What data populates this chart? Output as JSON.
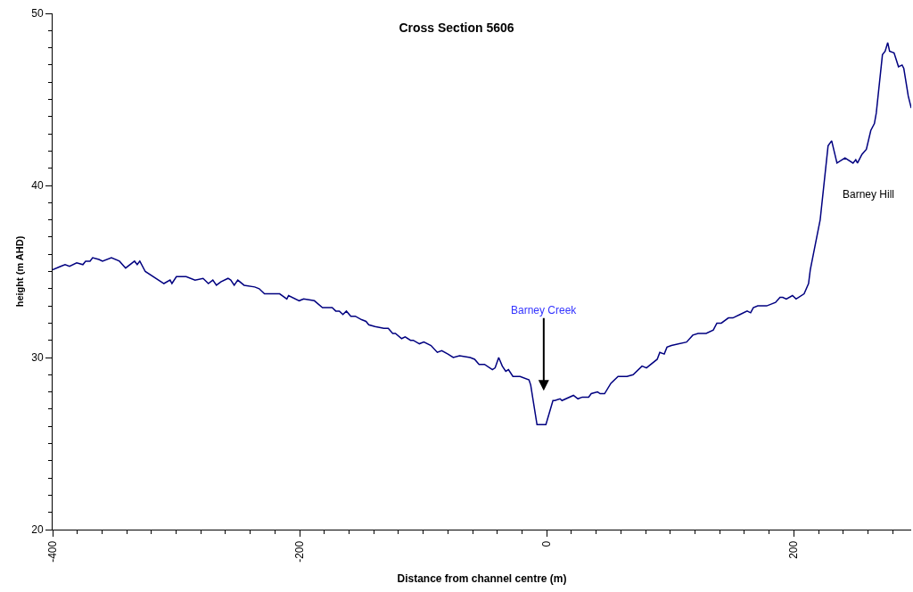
{
  "chart_data": {
    "type": "line",
    "title": "Cross Section 5606",
    "xlabel": "Distance from channel centre (m)",
    "ylabel": "height (m AHD)",
    "x": [
      -400,
      -393.5,
      -389.9,
      -386.3,
      -380.5,
      -375.5,
      -373.3,
      -369.7,
      -367.6,
      -362.5,
      -359.6,
      -352.4,
      -345.9,
      -340.9,
      -333.7,
      -331.5,
      -329.4,
      -325.0,
      -309.9,
      -304.9,
      -303.4,
      -299.8,
      -291.9,
      -284.7,
      -278.2,
      -273.9,
      -270.3,
      -267.4,
      -263.8,
      -258.0,
      -255.8,
      -253.0,
      -250.1,
      -245.0,
      -236.4,
      -232.8,
      -228.5,
      -216.2,
      -210.4,
      -209.0,
      -200.4,
      -196.8,
      -188.1,
      -181.6,
      -173.7,
      -170.8,
      -167.9,
      -165.0,
      -162.2,
      -158.6,
      -155.0,
      -149.9,
      -146.3,
      -144.1,
      -139.1,
      -131.9,
      -128.3,
      -124.7,
      -122.5,
      -117.5,
      -114.6,
      -110.3,
      -108.1,
      -103.1,
      -99.5,
      -93.7,
      -88.6,
      -85.0,
      -80.0,
      -75.7,
      -70.6,
      -62.0,
      -58.4,
      -54.8,
      -50.4,
      -44.0,
      -41.8,
      -38.9,
      -36.0,
      -33.2,
      -31.0,
      -27.4,
      -23.8,
      -21.6,
      -14.4,
      -13.0,
      -10.8,
      -7.9,
      -0.7,
      5.0,
      6.5,
      10.8,
      12.3,
      21.6,
      25.2,
      28.8,
      33.9,
      36.0,
      41.1,
      43.2,
      46.8,
      51.9,
      57.7,
      64.9,
      69.9,
      77.1,
      80.7,
      89.4,
      91.5,
      95.1,
      97.3,
      100.9,
      113.2,
      118.2,
      122.5,
      129.0,
      134.8,
      137.7,
      141.3,
      147.0,
      150.6,
      156.4,
      162.2,
      165.0,
      167.2,
      170.8,
      173.0,
      178.0,
      185.2,
      188.8,
      191.0,
      193.9,
      198.9,
      201.8,
      208.3,
      211.9,
      213.3,
      221.3,
      227.7,
      230.6,
      234.9,
      241.4,
      247.9,
      250.1,
      251.5,
      255.1,
      258.7,
      262.3,
      265.2,
      266.7,
      271.7,
      273.9,
      276.0,
      277.5,
      281.1,
      284.7,
      287.6,
      289.0,
      292.6,
      295
    ],
    "series": [
      {
        "color": "#000080",
        "values": [
          35.1,
          35.3,
          35.4,
          35.3,
          35.5,
          35.4,
          35.6,
          35.6,
          35.8,
          35.7,
          35.6,
          35.8,
          35.6,
          35.2,
          35.6,
          35.4,
          35.6,
          35.0,
          34.3,
          34.5,
          34.3,
          34.7,
          34.7,
          34.5,
          34.6,
          34.3,
          34.5,
          34.2,
          34.4,
          34.6,
          34.5,
          34.2,
          34.5,
          34.2,
          34.1,
          34.0,
          33.7,
          33.7,
          33.4,
          33.6,
          33.3,
          33.4,
          33.3,
          32.9,
          32.9,
          32.7,
          32.7,
          32.5,
          32.7,
          32.4,
          32.4,
          32.2,
          32.1,
          31.9,
          31.8,
          31.7,
          31.7,
          31.4,
          31.4,
          31.1,
          31.2,
          31.0,
          31.0,
          30.8,
          30.9,
          30.7,
          30.3,
          30.4,
          30.2,
          30.0,
          30.1,
          30.0,
          29.9,
          29.6,
          29.6,
          29.3,
          29.4,
          30.0,
          29.5,
          29.2,
          29.3,
          28.9,
          28.9,
          28.9,
          28.7,
          28.4,
          27.4,
          26.1,
          26.1,
          27.5,
          27.5,
          27.6,
          27.5,
          27.8,
          27.6,
          27.7,
          27.7,
          27.9,
          28.0,
          27.9,
          27.9,
          28.5,
          28.9,
          28.9,
          29.0,
          29.5,
          29.4,
          29.9,
          30.3,
          30.2,
          30.6,
          30.7,
          30.9,
          31.3,
          31.4,
          31.4,
          31.6,
          32.0,
          32.0,
          32.3,
          32.3,
          32.5,
          32.7,
          32.6,
          32.9,
          33.0,
          33.0,
          33.0,
          33.2,
          33.5,
          33.5,
          33.4,
          33.6,
          33.4,
          33.7,
          34.3,
          35.1,
          38.0,
          42.3,
          42.6,
          41.3,
          41.6,
          41.3,
          41.5,
          41.3,
          41.8,
          42.1,
          43.2,
          43.6,
          44.2,
          47.6,
          47.8,
          48.3,
          47.8,
          47.7,
          46.9,
          47.0,
          46.8,
          45.2,
          44.5
        ]
      }
    ],
    "xlim": [
      -400,
      295
    ],
    "ylim": [
      20,
      50
    ],
    "xticks": [
      -400,
      {
        "value": -380,
        "label": null
      },
      {
        "value": -360,
        "label": null
      },
      {
        "value": -340,
        "label": null
      },
      {
        "value": -320,
        "label": null
      },
      {
        "value": -300,
        "label": null
      },
      {
        "value": -280,
        "label": null
      },
      {
        "value": -260,
        "label": null
      },
      {
        "value": -240,
        "label": null
      },
      {
        "value": -220,
        "label": null
      },
      -200,
      {
        "value": -180,
        "label": null
      },
      {
        "value": -160,
        "label": null
      },
      {
        "value": -140,
        "label": null
      },
      {
        "value": -120,
        "label": null
      },
      {
        "value": -100,
        "label": null
      },
      {
        "value": -80,
        "label": null
      },
      {
        "value": -60,
        "label": null
      },
      {
        "value": -40,
        "label": null
      },
      {
        "value": -20,
        "label": null
      },
      0,
      {
        "value": 20,
        "label": null
      },
      {
        "value": 40,
        "label": null
      },
      {
        "value": 60,
        "label": null
      },
      {
        "value": 80,
        "label": null
      },
      {
        "value": 100,
        "label": null
      },
      {
        "value": 120,
        "label": null
      },
      {
        "value": 140,
        "label": null
      },
      {
        "value": 160,
        "label": null
      },
      {
        "value": 180,
        "label": null
      },
      200,
      {
        "value": 220,
        "label": null
      },
      {
        "value": 240,
        "label": null
      },
      {
        "value": 260,
        "label": null
      },
      {
        "value": 280,
        "label": null
      }
    ],
    "yticks": [
      20,
      {
        "value": 21,
        "label": null
      },
      {
        "value": 22,
        "label": null
      },
      {
        "value": 23,
        "label": null
      },
      {
        "value": 24,
        "label": null
      },
      {
        "value": 25,
        "label": null
      },
      {
        "value": 26,
        "label": null
      },
      {
        "value": 27,
        "label": null
      },
      {
        "value": 28,
        "label": null
      },
      {
        "value": 29,
        "label": null
      },
      30,
      {
        "value": 31,
        "label": null
      },
      {
        "value": 32,
        "label": null
      },
      {
        "value": 33,
        "label": null
      },
      {
        "value": 34,
        "label": null
      },
      {
        "value": 35,
        "label": null
      },
      {
        "value": 36,
        "label": null
      },
      {
        "value": 37,
        "label": null
      },
      {
        "value": 38,
        "label": null
      },
      {
        "value": 39,
        "label": null
      },
      40,
      {
        "value": 41,
        "label": null
      },
      {
        "value": 42,
        "label": null
      },
      {
        "value": 43,
        "label": null
      },
      {
        "value": 44,
        "label": null
      },
      {
        "value": 45,
        "label": null
      },
      {
        "value": 46,
        "label": null
      },
      {
        "value": 47,
        "label": null
      },
      {
        "value": 48,
        "label": null
      },
      {
        "value": 49,
        "label": null
      },
      50
    ],
    "annotations": [
      "Barney Creek",
      "Barney Hill"
    ],
    "marker": "none",
    "line_style": "solid"
  }
}
